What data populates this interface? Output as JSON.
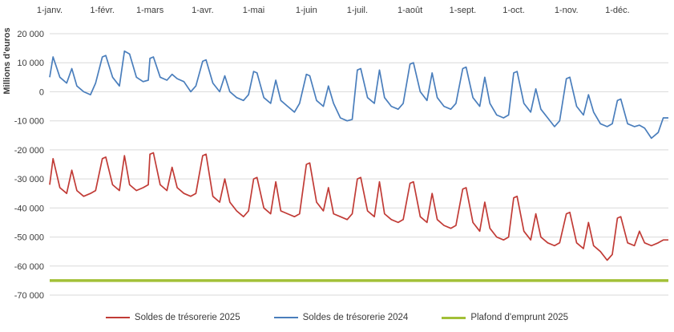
{
  "chart_data": {
    "type": "line",
    "title": "",
    "ylabel": "Millions d'euros",
    "ylim": [
      -70000,
      20000
    ],
    "grid": true,
    "legend_position": "bottom",
    "yticks": [
      20000,
      10000,
      0,
      -10000,
      -20000,
      -30000,
      -40000,
      -50000,
      -60000,
      -70000
    ],
    "ytick_labels": [
      "20 000",
      "10 000",
      "0",
      "-10 000",
      "-20 000",
      "-30 000",
      "-40 000",
      "-50 000",
      "-60 000",
      "-70 000"
    ],
    "x_months": [
      {
        "label": "1-janv.",
        "day": 1
      },
      {
        "label": "1-févr.",
        "day": 32
      },
      {
        "label": "1-mars",
        "day": 60
      },
      {
        "label": "1-avr.",
        "day": 91
      },
      {
        "label": "1-mai",
        "day": 121
      },
      {
        "label": "1-juin",
        "day": 152
      },
      {
        "label": "1-juil.",
        "day": 182
      },
      {
        "label": "1-août",
        "day": 213
      },
      {
        "label": "1-sept.",
        "day": 244
      },
      {
        "label": "1-oct.",
        "day": 274
      },
      {
        "label": "1-nov.",
        "day": 305
      },
      {
        "label": "1-déc.",
        "day": 335
      }
    ],
    "x_days": [
      1,
      3,
      7,
      11,
      14,
      17,
      21,
      25,
      28,
      32,
      34,
      38,
      42,
      45,
      48,
      52,
      56,
      59,
      60,
      62,
      66,
      70,
      73,
      76,
      80,
      84,
      87,
      91,
      93,
      97,
      101,
      104,
      107,
      111,
      115,
      118,
      121,
      123,
      127,
      131,
      134,
      137,
      141,
      145,
      148,
      152,
      154,
      158,
      162,
      165,
      168,
      172,
      176,
      179,
      182,
      184,
      188,
      192,
      195,
      198,
      202,
      206,
      209,
      213,
      215,
      219,
      223,
      226,
      229,
      233,
      237,
      240,
      244,
      246,
      250,
      254,
      257,
      260,
      264,
      268,
      271,
      274,
      276,
      280,
      284,
      287,
      290,
      294,
      298,
      301,
      305,
      307,
      311,
      315,
      318,
      321,
      325,
      329,
      332,
      335,
      337,
      341,
      345,
      348,
      351,
      355,
      359,
      362,
      365
    ],
    "series": [
      {
        "name": "Soldes de trésorerie 2025",
        "color": "#c13b36",
        "values": [
          -32000,
          -23000,
          -33000,
          -35000,
          -27000,
          -34000,
          -36000,
          -35000,
          -34000,
          -23000,
          -22500,
          -32000,
          -34000,
          -22000,
          -32000,
          -34000,
          -33000,
          -32000,
          -21500,
          -21000,
          -32000,
          -34000,
          -26000,
          -33000,
          -35000,
          -36000,
          -35000,
          -22000,
          -21500,
          -36000,
          -38000,
          -30000,
          -38000,
          -41000,
          -43000,
          -41000,
          -30000,
          -29500,
          -40000,
          -42000,
          -31000,
          -41000,
          -42000,
          -43000,
          -42000,
          -25000,
          -24500,
          -38000,
          -41000,
          -33000,
          -42000,
          -43000,
          -44000,
          -42000,
          -30000,
          -29500,
          -41000,
          -43000,
          -31000,
          -42000,
          -44000,
          -45000,
          -44000,
          -31500,
          -31000,
          -43000,
          -45000,
          -35000,
          -44000,
          -46000,
          -47000,
          -46000,
          -33500,
          -33000,
          -45000,
          -48000,
          -38000,
          -47000,
          -50000,
          -51000,
          -50000,
          -36500,
          -36000,
          -48000,
          -51000,
          -42000,
          -50000,
          -52000,
          -53000,
          -52000,
          -42000,
          -41500,
          -52000,
          -54000,
          -45000,
          -53000,
          -55000,
          -58000,
          -56000,
          -43500,
          -43000,
          -52000,
          -53000,
          -48000,
          -52000,
          -53000,
          -52000,
          -51000,
          -51000
        ]
      },
      {
        "name": "Soldes de trésorerie 2024",
        "color": "#4a7ebc",
        "values": [
          5000,
          12000,
          5000,
          3000,
          8000,
          2000,
          0,
          -1000,
          3000,
          12000,
          12500,
          5000,
          2000,
          14000,
          13000,
          5000,
          3500,
          4000,
          11500,
          12000,
          5000,
          4000,
          6000,
          4500,
          3500,
          0,
          2000,
          10500,
          11000,
          3000,
          0,
          5500,
          0,
          -2000,
          -3000,
          -1000,
          7000,
          6500,
          -2000,
          -4000,
          4000,
          -3000,
          -5000,
          -7000,
          -4000,
          6000,
          5500,
          -3000,
          -5000,
          2000,
          -4000,
          -9000,
          -10000,
          -9500,
          7500,
          8000,
          -2000,
          -4000,
          7500,
          -2000,
          -5000,
          -6000,
          -4000,
          9500,
          10000,
          0,
          -3000,
          6500,
          -2000,
          -5000,
          -6000,
          -4000,
          8000,
          8500,
          -2000,
          -5000,
          5000,
          -4000,
          -8000,
          -9000,
          -8000,
          6500,
          7000,
          -4000,
          -7000,
          1000,
          -6000,
          -9000,
          -12000,
          -10000,
          4500,
          5000,
          -5000,
          -8000,
          -1000,
          -7000,
          -11000,
          -12000,
          -11000,
          -3000,
          -2500,
          -11000,
          -12000,
          -11500,
          -12500,
          -16000,
          -14000,
          -9000,
          -9000
        ]
      },
      {
        "name": "Plafond d'emprunt 2025",
        "color": "#a2c037",
        "constant": -65000
      }
    ]
  }
}
